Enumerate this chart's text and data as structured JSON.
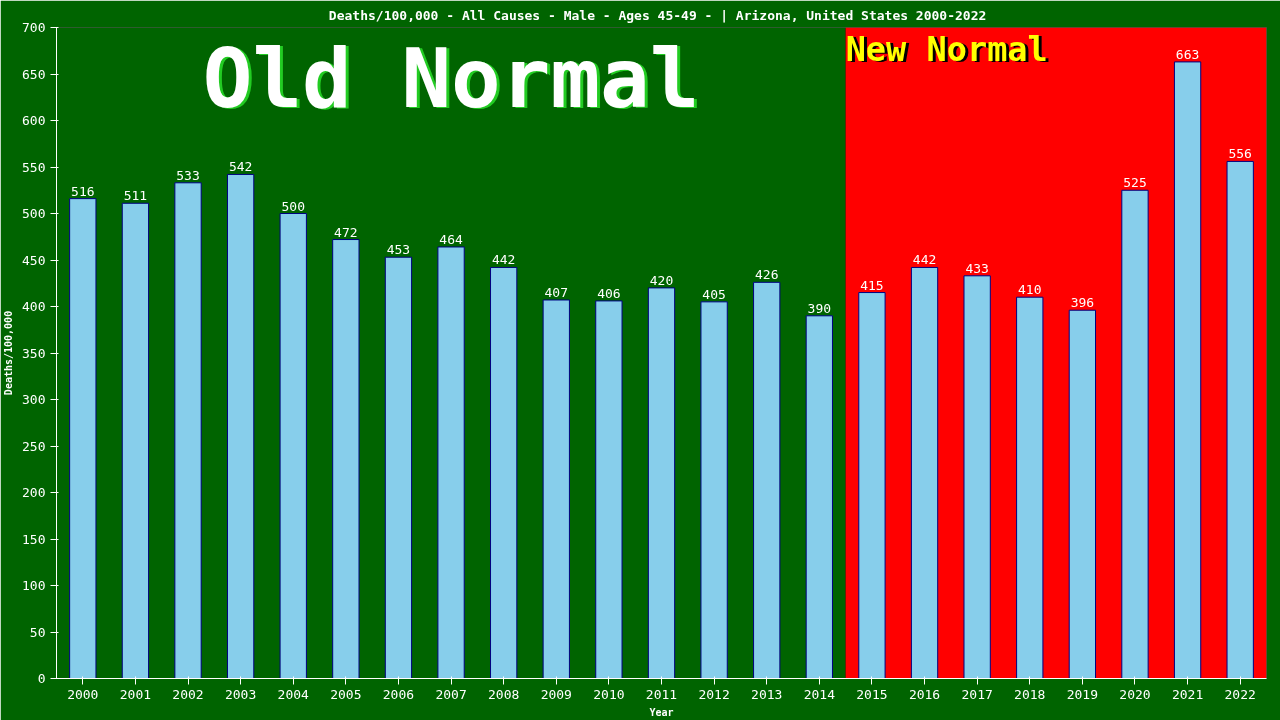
{
  "chart_data": {
    "type": "bar",
    "title": "Deaths/100,000 - All Causes - Male - Ages 45-49 -  | Arizona, United States 2000-2022",
    "xlabel": "Year",
    "ylabel": "Deaths/100,000",
    "categories": [
      "2000",
      "2001",
      "2002",
      "2003",
      "2004",
      "2005",
      "2006",
      "2007",
      "2008",
      "2009",
      "2010",
      "2011",
      "2012",
      "2013",
      "2014",
      "2015",
      "2016",
      "2017",
      "2018",
      "2019",
      "2020",
      "2021",
      "2022"
    ],
    "values": [
      516,
      511,
      533,
      542,
      500,
      472,
      453,
      464,
      442,
      407,
      406,
      420,
      405,
      426,
      390,
      415,
      442,
      433,
      410,
      396,
      525,
      663,
      556
    ],
    "color": "#87ceeb",
    "data_labels": true,
    "ylim": [
      0,
      700
    ],
    "yticks": [
      0,
      50,
      100,
      150,
      200,
      250,
      300,
      350,
      400,
      450,
      500,
      550,
      600,
      650,
      700
    ],
    "grid": false,
    "bands": [
      {
        "axis": "x",
        "from": "2000",
        "to": "2014",
        "label": "Old Normal",
        "color": "#006400"
      },
      {
        "axis": "x",
        "from": "2015",
        "to": "2022",
        "label": "New Normal",
        "color": "#ff0000"
      }
    ]
  }
}
